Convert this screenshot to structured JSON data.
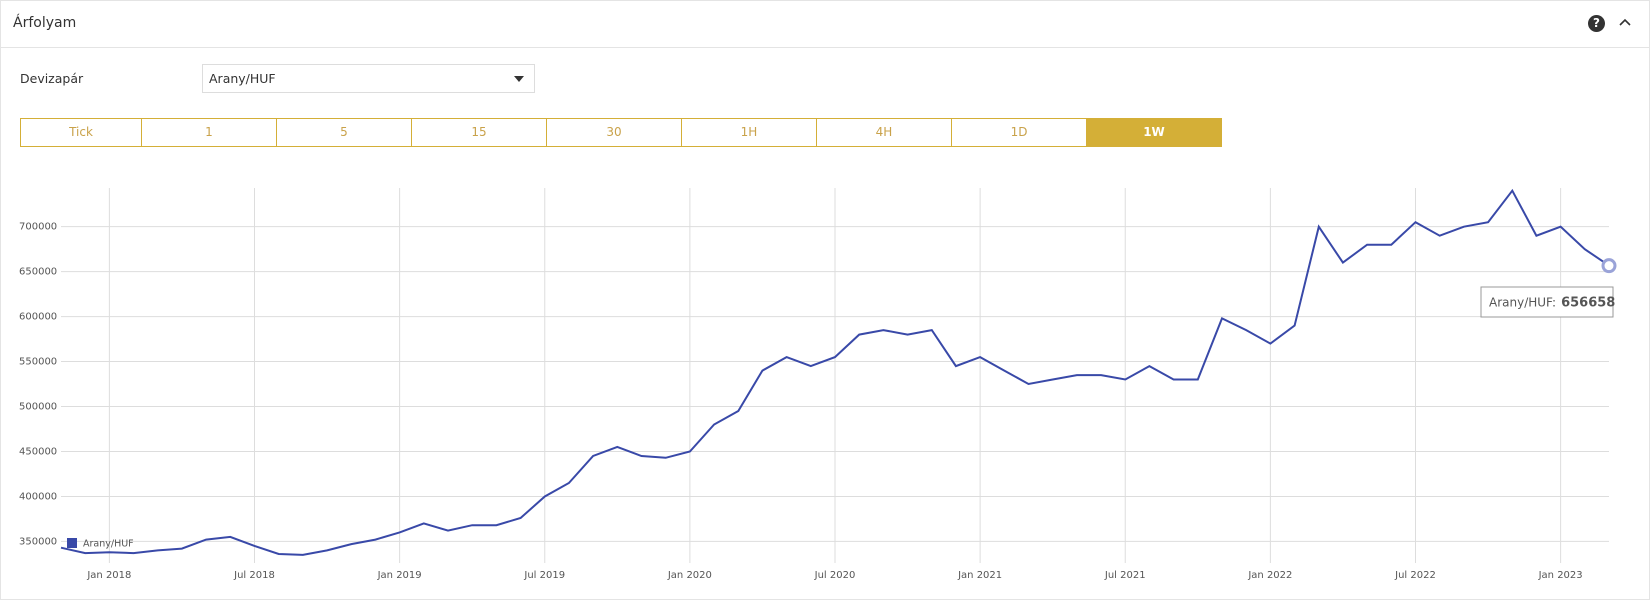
{
  "header": {
    "title": "Árfolyam"
  },
  "form": {
    "label": "Devizapár",
    "select": "Arany/HUF"
  },
  "buttons": [
    "Tick",
    "1",
    "5",
    "15",
    "30",
    "1H",
    "4H",
    "1D",
    "1W"
  ],
  "active_button": 8,
  "chart_data": {
    "type": "line",
    "x": [
      "2017-11",
      "2017-12",
      "2018-01",
      "2018-02",
      "2018-03",
      "2018-04",
      "2018-05",
      "2018-06",
      "2018-07",
      "2018-08",
      "2018-09",
      "2018-10",
      "2018-11",
      "2018-12",
      "2019-01",
      "2019-02",
      "2019-03",
      "2019-04",
      "2019-05",
      "2019-06",
      "2019-07",
      "2019-08",
      "2019-09",
      "2019-10",
      "2019-11",
      "2019-12",
      "2020-01",
      "2020-02",
      "2020-03",
      "2020-04",
      "2020-05",
      "2020-06",
      "2020-07",
      "2020-08",
      "2020-09",
      "2020-10",
      "2020-11",
      "2020-12",
      "2021-01",
      "2021-02",
      "2021-03",
      "2021-04",
      "2021-05",
      "2021-06",
      "2021-07",
      "2021-08",
      "2021-09",
      "2021-10",
      "2021-11",
      "2021-12",
      "2022-01",
      "2022-02",
      "2022-03",
      "2022-04",
      "2022-05",
      "2022-06",
      "2022-07",
      "2022-08",
      "2022-09",
      "2022-10",
      "2022-11",
      "2022-12",
      "2023-01",
      "2023-02",
      "2023-03"
    ],
    "series": [
      {
        "name": "Arany/HUF",
        "color": "#3949a8",
        "values": [
          343000,
          337000,
          338000,
          337000,
          340000,
          342000,
          352000,
          355000,
          345000,
          336000,
          335000,
          340000,
          347000,
          352000,
          360000,
          370000,
          362000,
          368000,
          368000,
          376000,
          400000,
          415000,
          445000,
          455000,
          445000,
          443000,
          450000,
          480000,
          495000,
          540000,
          555000,
          545000,
          555000,
          580000,
          585000,
          580000,
          585000,
          545000,
          555000,
          540000,
          525000,
          530000,
          535000,
          535000,
          530000,
          545000,
          530000,
          530000,
          598000,
          585000,
          570000,
          590000,
          700000,
          660000,
          680000,
          680000,
          705000,
          690000,
          700000,
          705000,
          740000,
          690000,
          700000,
          675000,
          656658
        ]
      }
    ],
    "xlim": [
      "2017-11",
      "2023-03"
    ],
    "xticks": [
      {
        "value": "2018-01",
        "label": "Jan 2018"
      },
      {
        "value": "2018-07",
        "label": "Jul 2018"
      },
      {
        "value": "2019-01",
        "label": "Jan 2019"
      },
      {
        "value": "2019-07",
        "label": "Jul 2019"
      },
      {
        "value": "2020-01",
        "label": "Jan 2020"
      },
      {
        "value": "2020-07",
        "label": "Jul 2020"
      },
      {
        "value": "2021-01",
        "label": "Jan 2021"
      },
      {
        "value": "2021-07",
        "label": "Jul 2021"
      },
      {
        "value": "2022-01",
        "label": "Jan 2022"
      },
      {
        "value": "2022-07",
        "label": "Jul 2022"
      },
      {
        "value": "2023-01",
        "label": "Jan 2023"
      }
    ],
    "ylim": [
      326000,
      743000
    ],
    "yticks": [
      350000,
      400000,
      450000,
      500000,
      550000,
      600000,
      650000,
      700000
    ],
    "grid": true,
    "tooltip": {
      "label": "Arany/HUF:",
      "value": 656658
    }
  }
}
